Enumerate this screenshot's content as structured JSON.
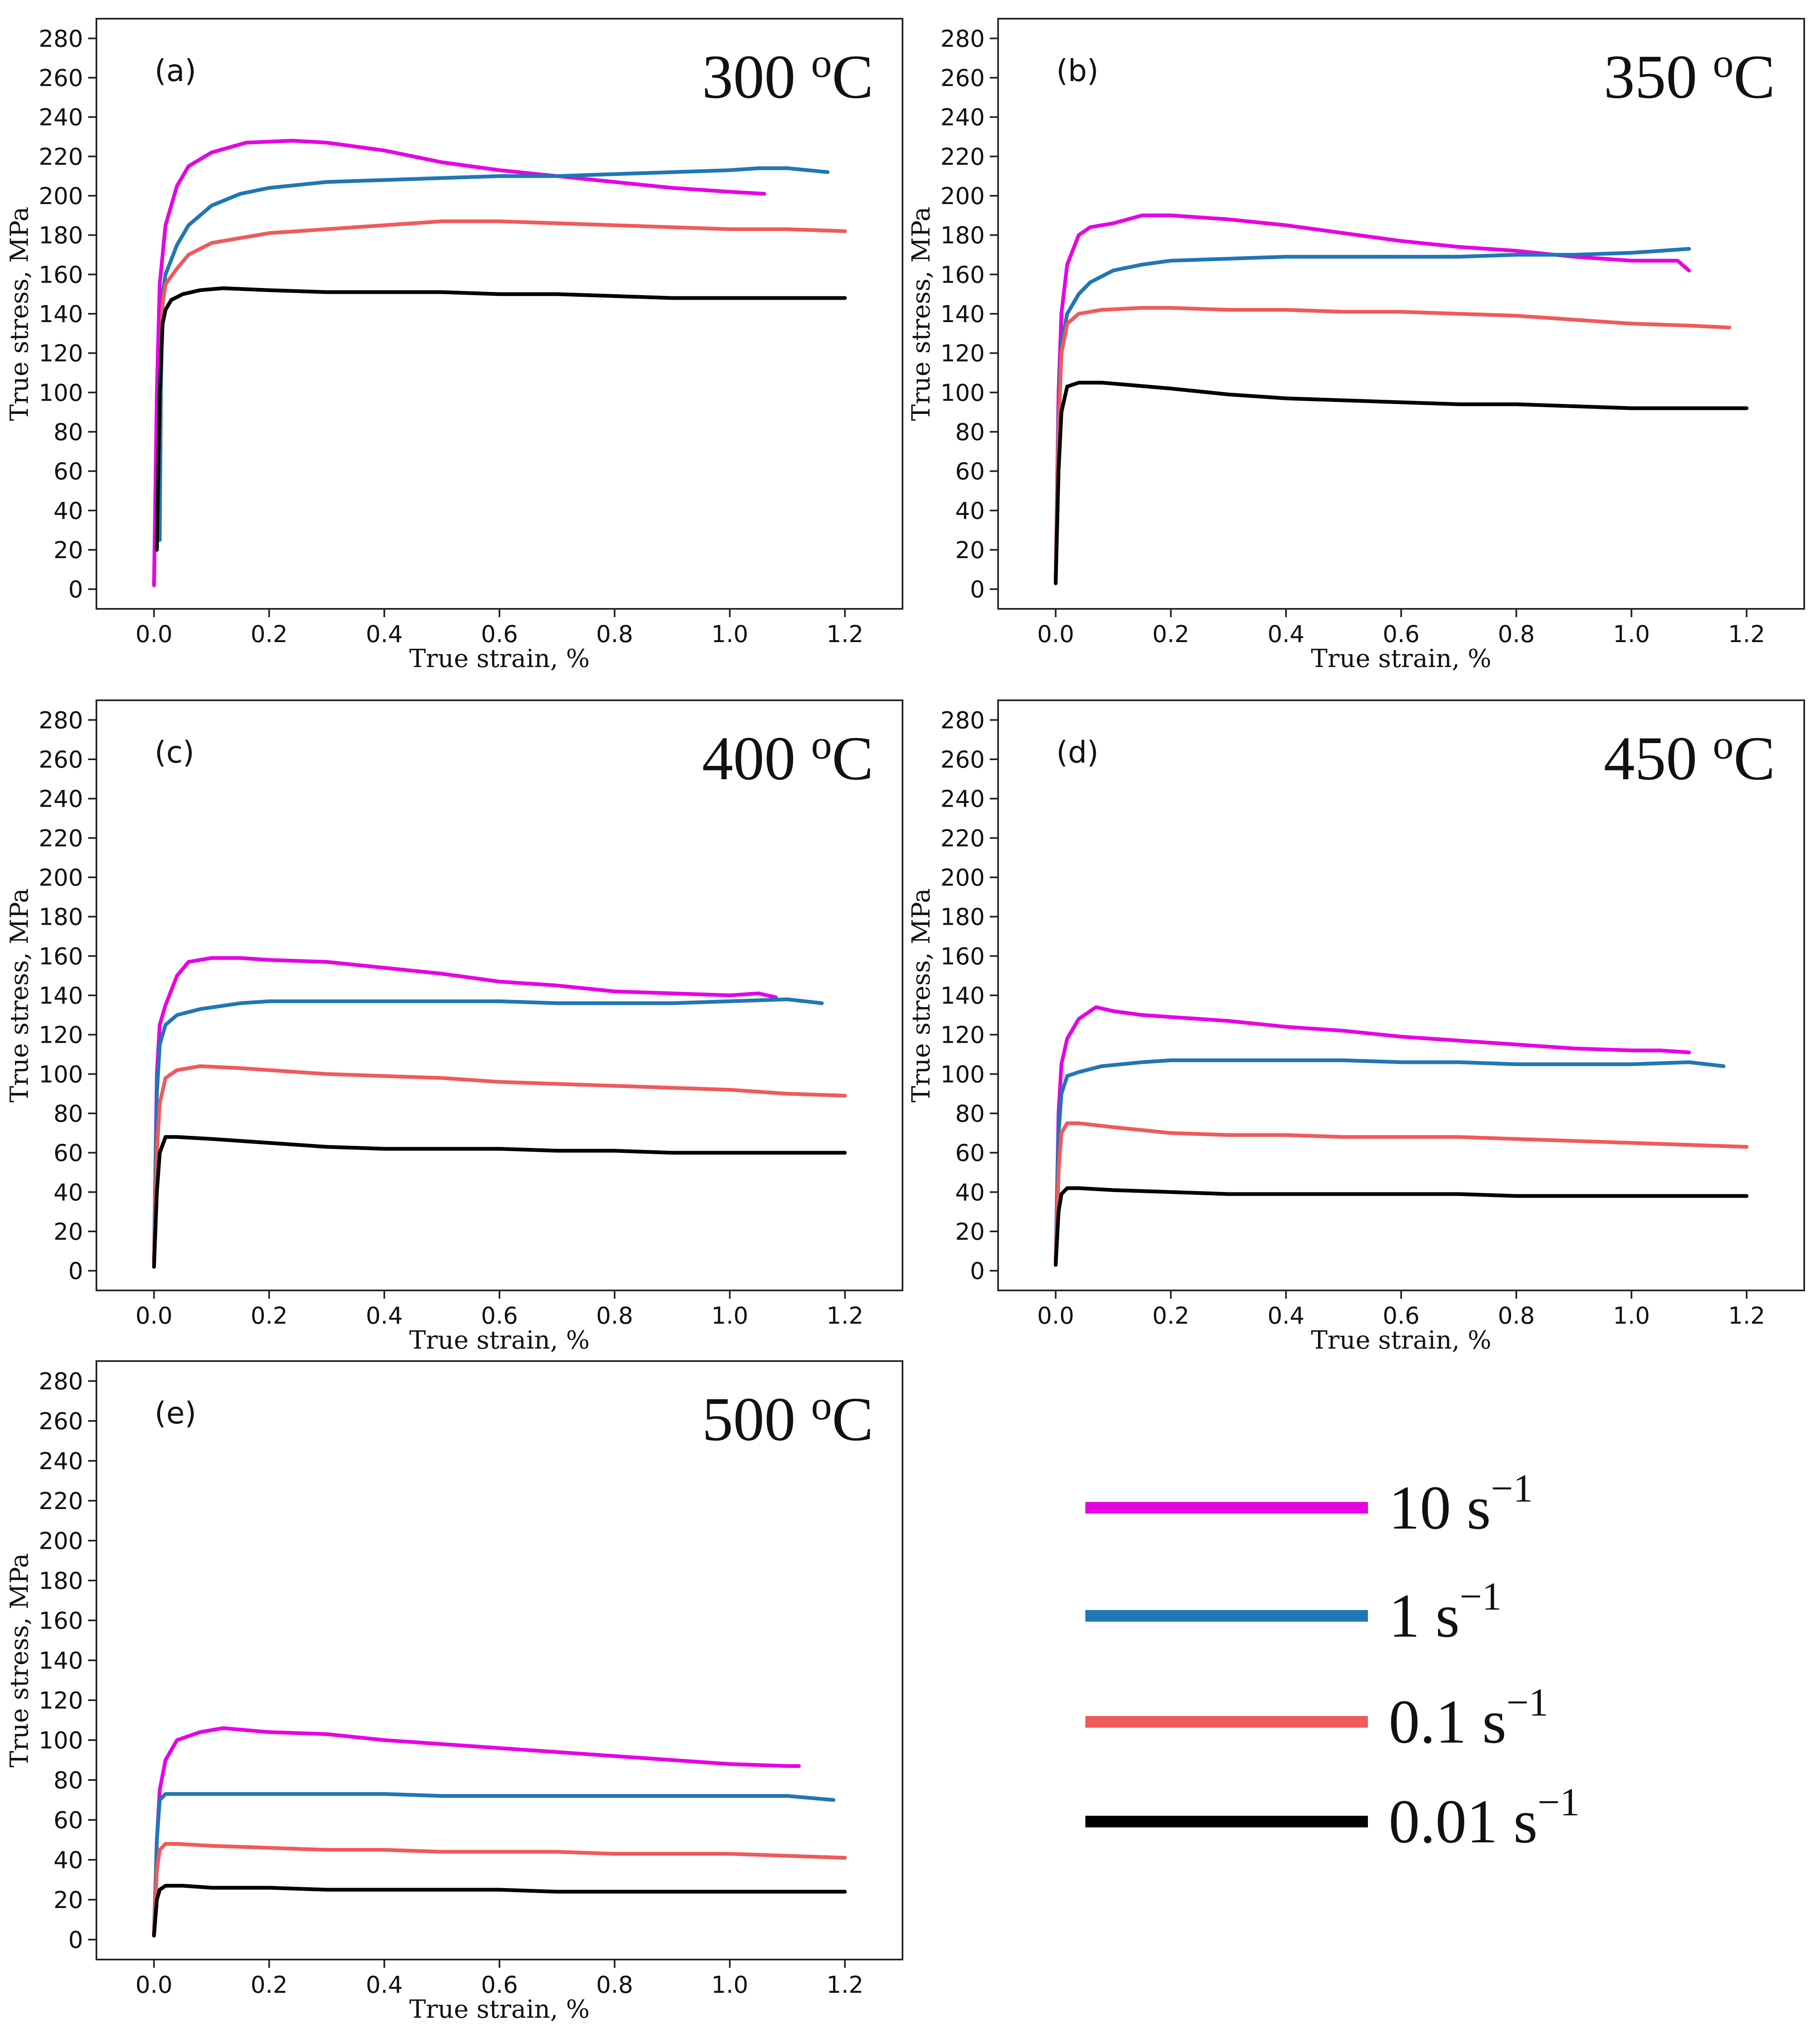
{
  "chart_data": [
    {
      "type": "line",
      "panel_label": "(a)",
      "temperature": "300",
      "temp_unit": "oC",
      "xlabel": "True strain, %",
      "ylabel": "True stress, MPa",
      "xlim": [
        -0.1,
        1.3
      ],
      "ylim": [
        -10,
        290
      ],
      "xticks": [
        "0.0",
        "0.2",
        "0.4",
        "0.6",
        "0.8",
        "1.0",
        "1.2"
      ],
      "yticks": [
        "0",
        "20",
        "40",
        "60",
        "80",
        "100",
        "120",
        "140",
        "160",
        "180",
        "200",
        "220",
        "240",
        "260",
        "280"
      ],
      "series": [
        {
          "name": "10 s−1",
          "color": "#e600e6",
          "x": [
            0,
            0.005,
            0.01,
            0.02,
            0.04,
            0.06,
            0.1,
            0.16,
            0.24,
            0.3,
            0.4,
            0.5,
            0.6,
            0.7,
            0.8,
            0.9,
            1.0,
            1.06
          ],
          "y": [
            2,
            100,
            155,
            185,
            205,
            215,
            222,
            227,
            228,
            227,
            223,
            217,
            213,
            210,
            207,
            204,
            202,
            201
          ]
        },
        {
          "name": "1 s−1",
          "color": "#1f77b4",
          "x": [
            0.01,
            0.012,
            0.015,
            0.02,
            0.04,
            0.06,
            0.1,
            0.15,
            0.2,
            0.3,
            0.4,
            0.5,
            0.6,
            0.7,
            0.8,
            0.9,
            1.0,
            1.05,
            1.1,
            1.17
          ],
          "y": [
            25,
            100,
            150,
            160,
            175,
            185,
            195,
            201,
            204,
            207,
            208,
            209,
            210,
            210,
            211,
            212,
            213,
            214,
            214,
            212
          ]
        },
        {
          "name": "0.1 s−1",
          "color": "#f05a5a",
          "x": [
            0.005,
            0.01,
            0.015,
            0.02,
            0.04,
            0.06,
            0.1,
            0.2,
            0.3,
            0.4,
            0.5,
            0.6,
            0.7,
            0.8,
            0.9,
            1.0,
            1.1,
            1.2
          ],
          "y": [
            20,
            100,
            145,
            155,
            163,
            170,
            176,
            181,
            183,
            185,
            187,
            187,
            186,
            185,
            184,
            183,
            183,
            182
          ]
        },
        {
          "name": "0.01 s−1",
          "color": "#000000",
          "x": [
            0.005,
            0.01,
            0.015,
            0.02,
            0.03,
            0.05,
            0.08,
            0.12,
            0.2,
            0.3,
            0.4,
            0.5,
            0.6,
            0.7,
            0.8,
            0.9,
            1.0,
            1.1,
            1.2
          ],
          "y": [
            20,
            100,
            135,
            142,
            147,
            150,
            152,
            153,
            152,
            151,
            151,
            151,
            150,
            150,
            149,
            148,
            148,
            148,
            148
          ]
        }
      ]
    },
    {
      "type": "line",
      "panel_label": "(b)",
      "temperature": "350",
      "temp_unit": "oC",
      "xlabel": "True strain, %",
      "ylabel": "True stress, MPa",
      "xlim": [
        -0.1,
        1.3
      ],
      "ylim": [
        -10,
        290
      ],
      "xticks": [
        "0.0",
        "0.2",
        "0.4",
        "0.6",
        "0.8",
        "1.0",
        "1.2"
      ],
      "yticks": [
        "0",
        "20",
        "40",
        "60",
        "80",
        "100",
        "120",
        "140",
        "160",
        "180",
        "200",
        "220",
        "240",
        "260",
        "280"
      ],
      "series": [
        {
          "name": "10 s−1",
          "color": "#e600e6",
          "x": [
            0,
            0.005,
            0.01,
            0.02,
            0.04,
            0.06,
            0.1,
            0.15,
            0.2,
            0.3,
            0.4,
            0.5,
            0.6,
            0.7,
            0.8,
            0.9,
            1.0,
            1.05,
            1.08,
            1.1
          ],
          "y": [
            5,
            100,
            140,
            165,
            180,
            184,
            186,
            190,
            190,
            188,
            185,
            181,
            177,
            174,
            172,
            169,
            167,
            167,
            167,
            162
          ]
        },
        {
          "name": "1 s−1",
          "color": "#1f77b4",
          "x": [
            0,
            0.005,
            0.01,
            0.02,
            0.04,
            0.06,
            0.1,
            0.15,
            0.2,
            0.3,
            0.4,
            0.5,
            0.6,
            0.7,
            0.8,
            0.9,
            1.0,
            1.1
          ],
          "y": [
            5,
            90,
            125,
            140,
            150,
            156,
            162,
            165,
            167,
            168,
            169,
            169,
            169,
            169,
            170,
            170,
            171,
            173
          ]
        },
        {
          "name": "0.1 s−1",
          "color": "#f05a5a",
          "x": [
            0,
            0.005,
            0.01,
            0.02,
            0.04,
            0.08,
            0.15,
            0.2,
            0.3,
            0.4,
            0.5,
            0.6,
            0.7,
            0.8,
            0.9,
            1.0,
            1.1,
            1.17
          ],
          "y": [
            5,
            80,
            120,
            135,
            140,
            142,
            143,
            143,
            142,
            142,
            141,
            141,
            140,
            139,
            137,
            135,
            134,
            133
          ]
        },
        {
          "name": "0.01 s−1",
          "color": "#000000",
          "x": [
            0,
            0.005,
            0.01,
            0.02,
            0.04,
            0.08,
            0.12,
            0.2,
            0.3,
            0.4,
            0.5,
            0.6,
            0.7,
            0.8,
            0.9,
            1.0,
            1.1,
            1.2
          ],
          "y": [
            3,
            60,
            90,
            103,
            105,
            105,
            104,
            102,
            99,
            97,
            96,
            95,
            94,
            94,
            93,
            92,
            92,
            92
          ]
        }
      ]
    },
    {
      "type": "line",
      "panel_label": "(c)",
      "temperature": "400",
      "temp_unit": "oC",
      "xlabel": "True strain, %",
      "ylabel": "True stress, MPa",
      "xlim": [
        -0.1,
        1.3
      ],
      "ylim": [
        -10,
        290
      ],
      "xticks": [
        "0.0",
        "0.2",
        "0.4",
        "0.6",
        "0.8",
        "1.0",
        "1.2"
      ],
      "yticks": [
        "0",
        "20",
        "40",
        "60",
        "80",
        "100",
        "120",
        "140",
        "160",
        "180",
        "200",
        "220",
        "240",
        "260",
        "280"
      ],
      "series": [
        {
          "name": "10 s−1",
          "color": "#e600e6",
          "x": [
            0,
            0.005,
            0.01,
            0.02,
            0.04,
            0.06,
            0.1,
            0.15,
            0.2,
            0.3,
            0.4,
            0.5,
            0.6,
            0.7,
            0.8,
            0.9,
            1.0,
            1.05,
            1.08
          ],
          "y": [
            5,
            100,
            125,
            135,
            150,
            157,
            159,
            159,
            158,
            157,
            154,
            151,
            147,
            145,
            142,
            141,
            140,
            141,
            139
          ]
        },
        {
          "name": "1 s−1",
          "color": "#1f77b4",
          "x": [
            0,
            0.005,
            0.01,
            0.02,
            0.04,
            0.08,
            0.15,
            0.2,
            0.3,
            0.4,
            0.5,
            0.6,
            0.7,
            0.8,
            0.9,
            1.0,
            1.1,
            1.16
          ],
          "y": [
            5,
            90,
            115,
            125,
            130,
            133,
            136,
            137,
            137,
            137,
            137,
            137,
            136,
            136,
            136,
            137,
            138,
            136
          ]
        },
        {
          "name": "0.1 s−1",
          "color": "#f05a5a",
          "x": [
            0,
            0.005,
            0.01,
            0.02,
            0.04,
            0.08,
            0.15,
            0.2,
            0.3,
            0.4,
            0.5,
            0.6,
            0.7,
            0.8,
            0.9,
            1.0,
            1.1,
            1.2
          ],
          "y": [
            5,
            60,
            85,
            98,
            102,
            104,
            103,
            102,
            100,
            99,
            98,
            96,
            95,
            94,
            93,
            92,
            90,
            89
          ]
        },
        {
          "name": "0.01 s−1",
          "color": "#000000",
          "x": [
            0,
            0.005,
            0.01,
            0.02,
            0.04,
            0.1,
            0.2,
            0.3,
            0.4,
            0.5,
            0.6,
            0.7,
            0.8,
            0.9,
            1.0,
            1.1,
            1.2
          ],
          "y": [
            2,
            40,
            60,
            68,
            68,
            67,
            65,
            63,
            62,
            62,
            62,
            61,
            61,
            60,
            60,
            60,
            60
          ]
        }
      ]
    },
    {
      "type": "line",
      "panel_label": "(d)",
      "temperature": "450",
      "temp_unit": "oC",
      "xlabel": "True strain, %",
      "ylabel": "True stress, MPa",
      "xlim": [
        -0.1,
        1.3
      ],
      "ylim": [
        -10,
        290
      ],
      "xticks": [
        "0.0",
        "0.2",
        "0.4",
        "0.6",
        "0.8",
        "1.0",
        "1.2"
      ],
      "yticks": [
        "0",
        "20",
        "40",
        "60",
        "80",
        "100",
        "120",
        "140",
        "160",
        "180",
        "200",
        "220",
        "240",
        "260",
        "280"
      ],
      "series": [
        {
          "name": "10 s−1",
          "color": "#e600e6",
          "x": [
            0,
            0.005,
            0.01,
            0.02,
            0.04,
            0.07,
            0.1,
            0.15,
            0.2,
            0.3,
            0.4,
            0.5,
            0.6,
            0.7,
            0.8,
            0.9,
            1.0,
            1.05,
            1.1
          ],
          "y": [
            5,
            80,
            105,
            118,
            128,
            134,
            132,
            130,
            129,
            127,
            124,
            122,
            119,
            117,
            115,
            113,
            112,
            112,
            111
          ]
        },
        {
          "name": "1 s−1",
          "color": "#1f77b4",
          "x": [
            0,
            0.005,
            0.01,
            0.02,
            0.04,
            0.08,
            0.15,
            0.2,
            0.3,
            0.4,
            0.5,
            0.6,
            0.7,
            0.8,
            0.9,
            1.0,
            1.1,
            1.16
          ],
          "y": [
            5,
            70,
            90,
            99,
            101,
            104,
            106,
            107,
            107,
            107,
            107,
            106,
            106,
            105,
            105,
            105,
            106,
            104
          ]
        },
        {
          "name": "0.1 s−1",
          "color": "#f05a5a",
          "x": [
            0,
            0.005,
            0.01,
            0.02,
            0.04,
            0.1,
            0.2,
            0.3,
            0.4,
            0.5,
            0.6,
            0.7,
            0.8,
            0.9,
            1.0,
            1.1,
            1.2
          ],
          "y": [
            3,
            50,
            70,
            75,
            75,
            73,
            70,
            69,
            69,
            68,
            68,
            68,
            67,
            66,
            65,
            64,
            63
          ]
        },
        {
          "name": "0.01 s−1",
          "color": "#000000",
          "x": [
            0,
            0.005,
            0.01,
            0.02,
            0.04,
            0.1,
            0.2,
            0.3,
            0.4,
            0.5,
            0.6,
            0.7,
            0.8,
            0.9,
            1.0,
            1.1,
            1.2
          ],
          "y": [
            3,
            30,
            39,
            42,
            42,
            41,
            40,
            39,
            39,
            39,
            39,
            39,
            38,
            38,
            38,
            38,
            38
          ]
        }
      ]
    },
    {
      "type": "line",
      "panel_label": "(e)",
      "temperature": "500",
      "temp_unit": "oC",
      "xlabel": "True strain, %",
      "ylabel": "True stress, MPa",
      "xlim": [
        -0.1,
        1.3
      ],
      "ylim": [
        -10,
        290
      ],
      "xticks": [
        "0.0",
        "0.2",
        "0.4",
        "0.6",
        "0.8",
        "1.0",
        "1.2"
      ],
      "yticks": [
        "0",
        "20",
        "40",
        "60",
        "80",
        "100",
        "120",
        "140",
        "160",
        "180",
        "200",
        "220",
        "240",
        "260",
        "280"
      ],
      "series": [
        {
          "name": "10 s−1",
          "color": "#e600e6",
          "x": [
            0,
            0.005,
            0.01,
            0.02,
            0.04,
            0.08,
            0.12,
            0.2,
            0.3,
            0.4,
            0.5,
            0.6,
            0.7,
            0.8,
            0.9,
            1.0,
            1.1,
            1.12
          ],
          "y": [
            3,
            50,
            75,
            90,
            100,
            104,
            106,
            104,
            103,
            100,
            98,
            96,
            94,
            92,
            90,
            88,
            87,
            87
          ]
        },
        {
          "name": "1 s−1",
          "color": "#1f77b4",
          "x": [
            0,
            0.005,
            0.01,
            0.02,
            0.05,
            0.1,
            0.2,
            0.3,
            0.4,
            0.5,
            0.6,
            0.7,
            0.8,
            0.9,
            1.0,
            1.1,
            1.18
          ],
          "y": [
            3,
            50,
            70,
            73,
            73,
            73,
            73,
            73,
            73,
            72,
            72,
            72,
            72,
            72,
            72,
            72,
            70
          ]
        },
        {
          "name": "0.1 s−1",
          "color": "#f05a5a",
          "x": [
            0,
            0.005,
            0.01,
            0.02,
            0.04,
            0.1,
            0.2,
            0.3,
            0.4,
            0.5,
            0.6,
            0.7,
            0.8,
            0.9,
            1.0,
            1.1,
            1.2
          ],
          "y": [
            3,
            35,
            45,
            48,
            48,
            47,
            46,
            45,
            45,
            44,
            44,
            44,
            43,
            43,
            43,
            42,
            41
          ]
        },
        {
          "name": "0.01 s−1",
          "color": "#000000",
          "x": [
            0,
            0.005,
            0.01,
            0.02,
            0.05,
            0.1,
            0.2,
            0.3,
            0.4,
            0.5,
            0.6,
            0.7,
            0.8,
            0.9,
            1.0,
            1.1,
            1.2
          ],
          "y": [
            2,
            20,
            25,
            27,
            27,
            26,
            26,
            25,
            25,
            25,
            25,
            24,
            24,
            24,
            24,
            24,
            24
          ]
        }
      ]
    }
  ],
  "legend": {
    "items": [
      {
        "label": "10 s",
        "exponent": "−1",
        "color": "#e600e6"
      },
      {
        "label": "1 s",
        "exponent": "−1",
        "color": "#1f77b4"
      },
      {
        "label": "0.1 s",
        "exponent": "−1",
        "color": "#f05a5a"
      },
      {
        "label": "0.01 s",
        "exponent": "−1",
        "color": "#000000"
      }
    ]
  }
}
